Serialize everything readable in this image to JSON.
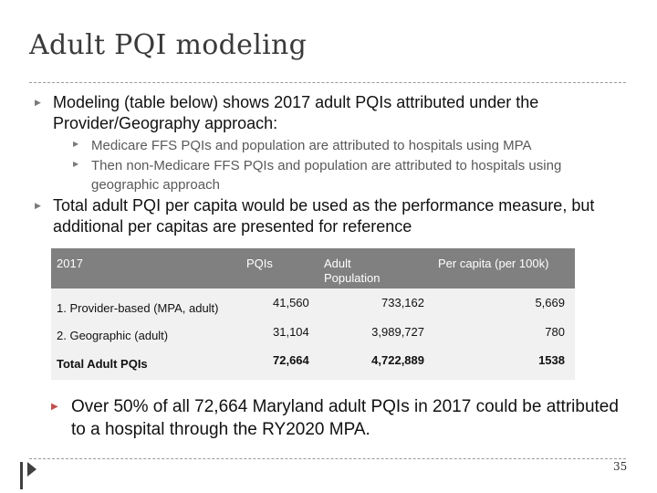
{
  "slide": {
    "title": "Adult PQI modeling",
    "page_number": "35"
  },
  "bullets": {
    "first": "Modeling (table below) shows 2017 adult PQIs attributed under the Provider/Geography approach:",
    "sub1": "Medicare FFS PQIs and population are attributed to hospitals using MPA",
    "sub2": "Then non-Medicare FFS PQIs and population are attributed to hospitals using geographic approach",
    "second": "Total adult PQI per capita would be used as the performance measure, but additional per capitas are presented for reference",
    "conclusion": "Over 50% of all 72,664 Maryland adult PQIs in 2017 could be attributed to a hospital through the RY2020 MPA."
  },
  "table": {
    "headers": {
      "year": "2017",
      "pqis": "PQIs",
      "population": "Adult Population",
      "per_capita": "Per capita (per 100k)"
    },
    "rows": [
      {
        "label": "1. Provider-based (MPA, adult)",
        "pqis": "41,560",
        "population": "733,162",
        "per_capita": "5,669"
      },
      {
        "label": "2. Geographic (adult)",
        "pqis": "31,104",
        "population": "3,989,727",
        "per_capita": "780"
      },
      {
        "label": "Total Adult PQIs",
        "pqis": "72,664",
        "population": "4,722,889",
        "per_capita": "1538"
      }
    ]
  },
  "icons": {
    "bullet": "triangle-bullet-icon",
    "corner": "corner-arrow-icon"
  },
  "colors": {
    "header_bg": "#808080",
    "body_bg": "#f1f1f1",
    "bullet_red": "#c0504d",
    "subtext": "#595959"
  }
}
